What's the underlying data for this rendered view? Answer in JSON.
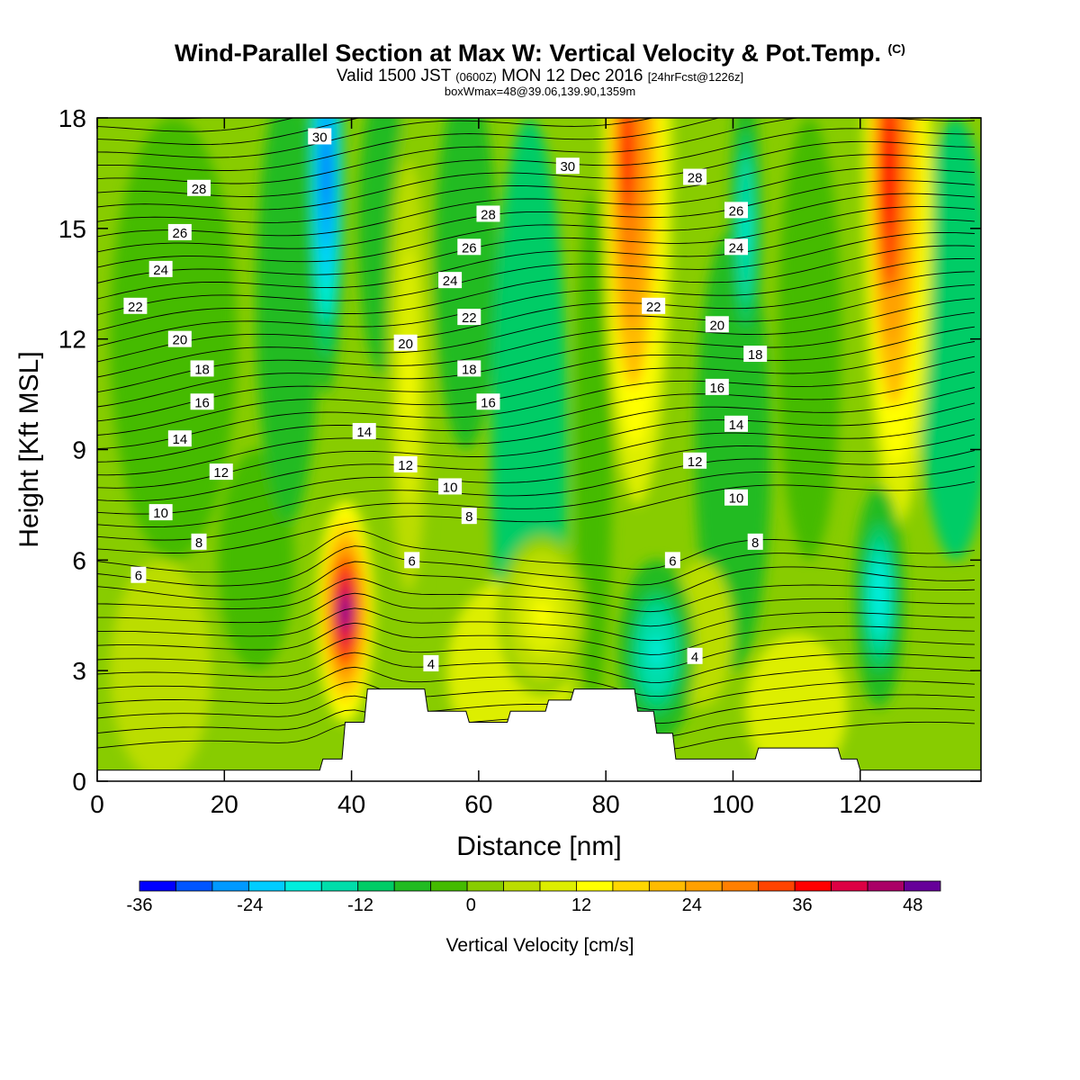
{
  "header": {
    "title": "Wind-Parallel Section at Max W: Vertical Velocity & Pot.Temp.",
    "title_mark": "(C)",
    "valid_prefix": "Valid 1500 JST",
    "valid_zulu": "(0600Z)",
    "valid_date": "MON 12 Dec 2016",
    "forecast": "[24hrFcst@1226z]",
    "subinfo": "boxWmax=48@39.06,139.90,1359m"
  },
  "chart_data": {
    "type": "heatmap",
    "title": "Wind-Parallel Section at Max W: Vertical Velocity & Pot.Temp.",
    "xlabel": "Distance [nm]",
    "ylabel": "Height [Kft MSL]",
    "xlim": [
      0,
      139
    ],
    "ylim": [
      0,
      18
    ],
    "x_ticks": [
      "0",
      "20",
      "40",
      "60",
      "80",
      "100",
      "120"
    ],
    "y_ticks": [
      "0",
      "3",
      "6",
      "9",
      "12",
      "15",
      "18"
    ],
    "colorbar": {
      "label": "Vertical Velocity [cm/s]",
      "ticks": [
        "-36",
        "-24",
        "-12",
        "0",
        "12",
        "24",
        "36",
        "48"
      ],
      "range": [
        -36,
        51
      ],
      "colors": [
        "#0000ff",
        "#0055ff",
        "#0099ff",
        "#00ccff",
        "#00eedd",
        "#00ddaa",
        "#00cc66",
        "#22bb22",
        "#44bb00",
        "#88cc00",
        "#bbdd00",
        "#ddee00",
        "#ffff00",
        "#ffd700",
        "#ffbb00",
        "#ffa000",
        "#ff7f00",
        "#ff4400",
        "#ff0000",
        "#dd0044",
        "#aa0066",
        "#660099"
      ]
    },
    "updrafts": [
      {
        "x": 39,
        "z": 4.6,
        "w": 48
      },
      {
        "x": 85,
        "z": 17,
        "w": 36
      },
      {
        "x": 126,
        "z": 16.5,
        "w": 38
      },
      {
        "x": 49,
        "z": 11,
        "w": 12
      },
      {
        "x": 70,
        "z": 4.5,
        "w": 12
      }
    ],
    "downdrafts": [
      {
        "x": 36,
        "z": 16.5,
        "w": -30
      },
      {
        "x": 88,
        "z": 3.5,
        "w": -18
      },
      {
        "x": 123,
        "z": 5,
        "w": -20
      },
      {
        "x": 102,
        "z": 15,
        "w": -18
      }
    ],
    "terrain_kft": [
      {
        "x": 0,
        "h": 0.3
      },
      {
        "x": 35,
        "h": 0.3
      },
      {
        "x": 35.5,
        "h": 0.6
      },
      {
        "x": 38.5,
        "h": 0.6
      },
      {
        "x": 39,
        "h": 1.6
      },
      {
        "x": 42,
        "h": 1.6
      },
      {
        "x": 42.5,
        "h": 2.5
      },
      {
        "x": 51.5,
        "h": 2.5
      },
      {
        "x": 52,
        "h": 1.9
      },
      {
        "x": 58,
        "h": 1.9
      },
      {
        "x": 58.5,
        "h": 1.6
      },
      {
        "x": 64.5,
        "h": 1.6
      },
      {
        "x": 65,
        "h": 1.9
      },
      {
        "x": 70.5,
        "h": 1.9
      },
      {
        "x": 71,
        "h": 2.2
      },
      {
        "x": 74.5,
        "h": 2.2
      },
      {
        "x": 75,
        "h": 2.5
      },
      {
        "x": 84.5,
        "h": 2.5
      },
      {
        "x": 85,
        "h": 1.9
      },
      {
        "x": 87.5,
        "h": 1.9
      },
      {
        "x": 88,
        "h": 1.3
      },
      {
        "x": 90.5,
        "h": 1.3
      },
      {
        "x": 91,
        "h": 0.6
      },
      {
        "x": 103.5,
        "h": 0.6
      },
      {
        "x": 104,
        "h": 0.9
      },
      {
        "x": 116.5,
        "h": 0.9
      },
      {
        "x": 117,
        "h": 0.6
      },
      {
        "x": 119.5,
        "h": 0.6
      },
      {
        "x": 120,
        "h": 0.3
      },
      {
        "x": 139,
        "h": 0.3
      }
    ],
    "theta_labels": [
      {
        "text": "30",
        "x": 35,
        "z": 17.5
      },
      {
        "text": "28",
        "x": 16,
        "z": 16.1
      },
      {
        "text": "26",
        "x": 13,
        "z": 14.9
      },
      {
        "text": "24",
        "x": 10,
        "z": 13.9
      },
      {
        "text": "22",
        "x": 6,
        "z": 12.9
      },
      {
        "text": "20",
        "x": 13,
        "z": 12.0
      },
      {
        "text": "18",
        "x": 16.5,
        "z": 11.2
      },
      {
        "text": "16",
        "x": 16.5,
        "z": 10.3
      },
      {
        "text": "14",
        "x": 13,
        "z": 9.3
      },
      {
        "text": "12",
        "x": 19.5,
        "z": 8.4
      },
      {
        "text": "10",
        "x": 10,
        "z": 7.3
      },
      {
        "text": "8",
        "x": 16,
        "z": 6.5
      },
      {
        "text": "6",
        "x": 6.5,
        "z": 5.6
      },
      {
        "text": "30",
        "x": 74,
        "z": 16.7
      },
      {
        "text": "28",
        "x": 61.5,
        "z": 15.4
      },
      {
        "text": "26",
        "x": 58.5,
        "z": 14.5
      },
      {
        "text": "24",
        "x": 55.5,
        "z": 13.6
      },
      {
        "text": "22",
        "x": 58.5,
        "z": 12.6
      },
      {
        "text": "20",
        "x": 48.5,
        "z": 11.9
      },
      {
        "text": "18",
        "x": 58.5,
        "z": 11.2
      },
      {
        "text": "16",
        "x": 61.5,
        "z": 10.3
      },
      {
        "text": "14",
        "x": 42,
        "z": 9.5
      },
      {
        "text": "12",
        "x": 48.5,
        "z": 8.6
      },
      {
        "text": "10",
        "x": 55.5,
        "z": 8.0
      },
      {
        "text": "8",
        "x": 58.5,
        "z": 7.2
      },
      {
        "text": "6",
        "x": 49.5,
        "z": 6.0
      },
      {
        "text": "4",
        "x": 52.5,
        "z": 3.2
      },
      {
        "text": "28",
        "x": 94,
        "z": 16.4
      },
      {
        "text": "26",
        "x": 100.5,
        "z": 15.5
      },
      {
        "text": "24",
        "x": 100.5,
        "z": 14.5
      },
      {
        "text": "22",
        "x": 87.5,
        "z": 12.9
      },
      {
        "text": "20",
        "x": 97.5,
        "z": 12.4
      },
      {
        "text": "18",
        "x": 103.5,
        "z": 11.6
      },
      {
        "text": "16",
        "x": 97.5,
        "z": 10.7
      },
      {
        "text": "14",
        "x": 100.5,
        "z": 9.7
      },
      {
        "text": "12",
        "x": 94,
        "z": 8.7
      },
      {
        "text": "10",
        "x": 100.5,
        "z": 7.7
      },
      {
        "text": "8",
        "x": 103.5,
        "z": 6.5
      },
      {
        "text": "6",
        "x": 90.5,
        "z": 6.0
      },
      {
        "text": "4",
        "x": 94,
        "z": 3.4
      }
    ]
  }
}
